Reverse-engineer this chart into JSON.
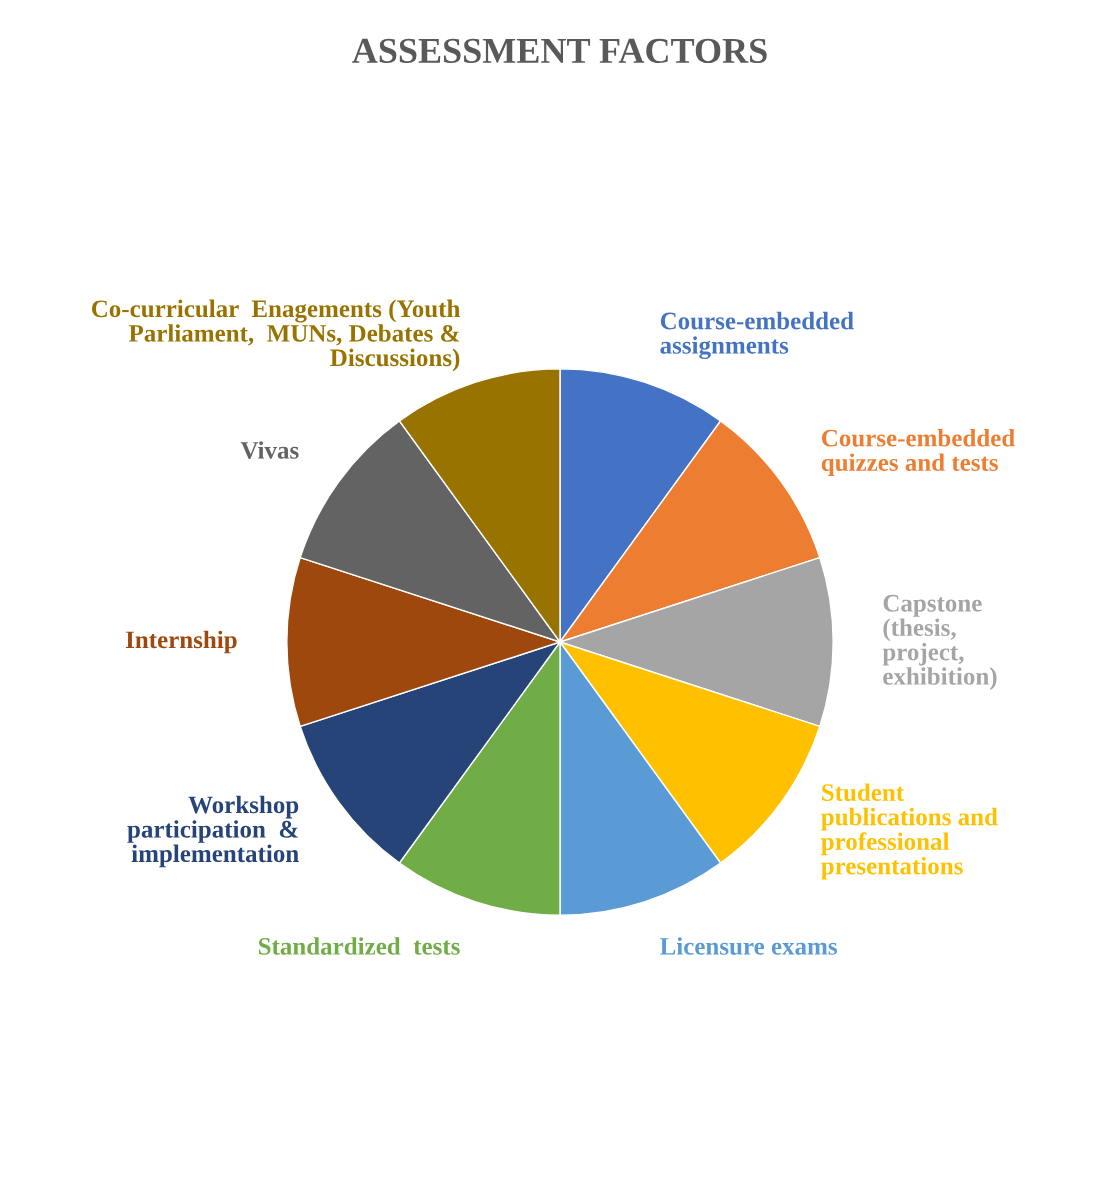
{
  "chart_data": {
    "type": "pie",
    "title": "ASSESSMENT FACTORS",
    "categories": [
      "Course-embedded\nassignments",
      "Course-embedded\nquizzes and tests",
      "Capstone\n(thesis,\nproject,\nexhibition)",
      "Student\npublications and\nprofessional\npresentations",
      "Licensure exams",
      "Standardized  tests",
      "Workshop\nparticipation  &\nimplementation",
      "Internship",
      "Vivas",
      "Co-curricular  Enagements (Youth\nParliament,  MUNs, Debates &\nDiscussions)"
    ],
    "values": [
      10,
      10,
      10,
      10,
      10,
      10,
      10,
      10,
      10,
      10
    ],
    "colors": [
      "#4472c4",
      "#ed7d31",
      "#a5a5a5",
      "#ffc000",
      "#5b9bd5",
      "#70ad47",
      "#264478",
      "#9e480e",
      "#636363",
      "#997300"
    ],
    "legend": false
  }
}
